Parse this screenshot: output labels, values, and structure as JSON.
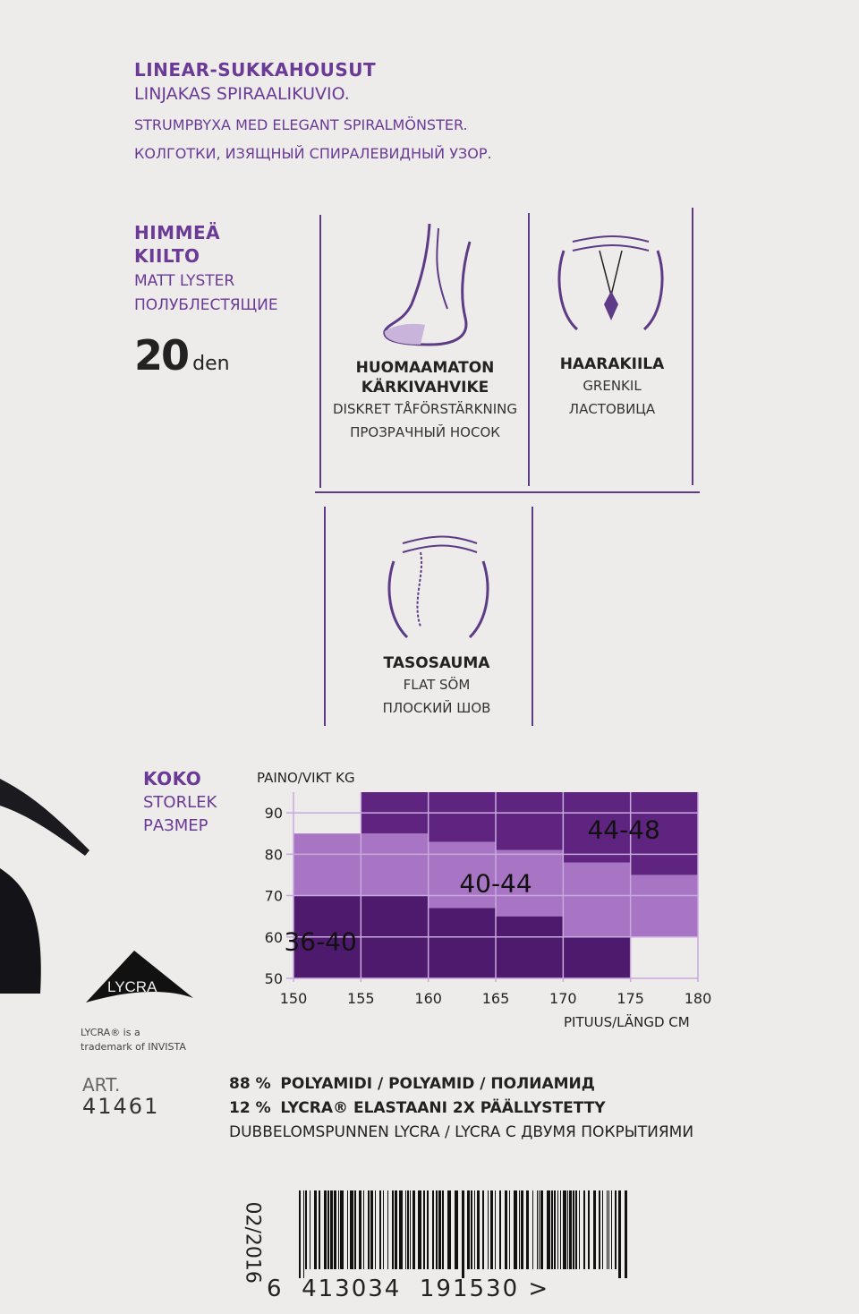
{
  "header": {
    "title": "LINEAR-SUKKAHOUSUT",
    "line_fi": "LINJAKAS SPIRAALIKUVIO.",
    "line_sv": "STRUMPBYXA MED ELEGANT SPIRALMÖNSTER.",
    "line_ru": "КОЛГОТКИ, ИЗЯЩНЫЙ СПИРАЛЕВИДНЫЙ УЗОР."
  },
  "finish": {
    "line1": "HIMMEÄ",
    "line2": "KIILTO",
    "sv": "MATT LYSTER",
    "ru": "ПОЛУБЛЕСТЯЩИЕ",
    "den_value": "20",
    "den_unit": "den"
  },
  "features": [
    {
      "title1": "HUOMAAMATON",
      "title2": "KÄRKIVAHVIKE",
      "sv": "DISKRET TÅFÖRSTÄRKNING",
      "ru": "ПРОЗРАЧНЫЙ НОСОК",
      "icon": "foot-toe-icon"
    },
    {
      "title1": "HAARAKIILA",
      "title2": "",
      "sv": "GRENKIL",
      "ru": "ЛАСТОВИЦА",
      "icon": "gusset-icon"
    },
    {
      "title1": "TASOSAUMA",
      "title2": "",
      "sv": "FLAT SÖM",
      "ru": "ПЛОСКИЙ ШОВ",
      "icon": "flat-seam-icon"
    }
  ],
  "size": {
    "fi": "KOKO",
    "sv": "STORLEK",
    "ru": "РАЗМЕР"
  },
  "chart_data": {
    "type": "heatmap",
    "ylabel": "PAINO/VIKT KG",
    "xlabel": "PITUUS/LÄNGD CM",
    "xlim": [
      150,
      180
    ],
    "ylim": [
      50,
      95
    ],
    "x_ticks": [
      "150",
      "155",
      "160",
      "165",
      "170",
      "175",
      "180"
    ],
    "y_ticks": [
      "50",
      "60",
      "70",
      "80",
      "90"
    ],
    "height_bins": [
      [
        150,
        155
      ],
      [
        155,
        160
      ],
      [
        160,
        165
      ],
      [
        165,
        170
      ],
      [
        170,
        175
      ],
      [
        175,
        180
      ]
    ],
    "series": [
      {
        "name": "36-40",
        "color": "#4e1a6e",
        "ranges": [
          [
            50,
            70
          ],
          [
            50,
            70
          ],
          [
            50,
            67
          ],
          [
            50,
            65
          ],
          [
            50,
            60
          ],
          null
        ]
      },
      {
        "name": "40-44",
        "color": "#a775c4",
        "ranges": [
          [
            70,
            85
          ],
          [
            70,
            85
          ],
          [
            67,
            83
          ],
          [
            65,
            81
          ],
          [
            60,
            78
          ],
          [
            60,
            75
          ]
        ]
      },
      {
        "name": "44-48",
        "color": "#5e2480",
        "ranges": [
          null,
          [
            85,
            95
          ],
          [
            83,
            95
          ],
          [
            81,
            95
          ],
          [
            78,
            95
          ],
          [
            75,
            95
          ]
        ]
      }
    ],
    "grid": true
  },
  "lycra": {
    "logo": "LYCRA",
    "note1": "LYCRA® is a",
    "note2": "trademark of INVISTA"
  },
  "article": {
    "label": "ART.",
    "number": "41461"
  },
  "composition": {
    "line1_pct": "88 %",
    "line1": "POLYAMIDI / POLYAMID / ПОЛИАМИД",
    "line2_pct": "12 %",
    "line2": "LYCRA® ELASTAANI 2X PÄÄLLYSTETTY",
    "line3": "DUBBELOMSPUNNEN LYCRA / LYCRA С ДВУМЯ ПОКРЫТИЯМИ"
  },
  "date": "02/2016",
  "barcode": {
    "d1": "6",
    "d2": "413034",
    "d3": "191530",
    "end": ">"
  }
}
